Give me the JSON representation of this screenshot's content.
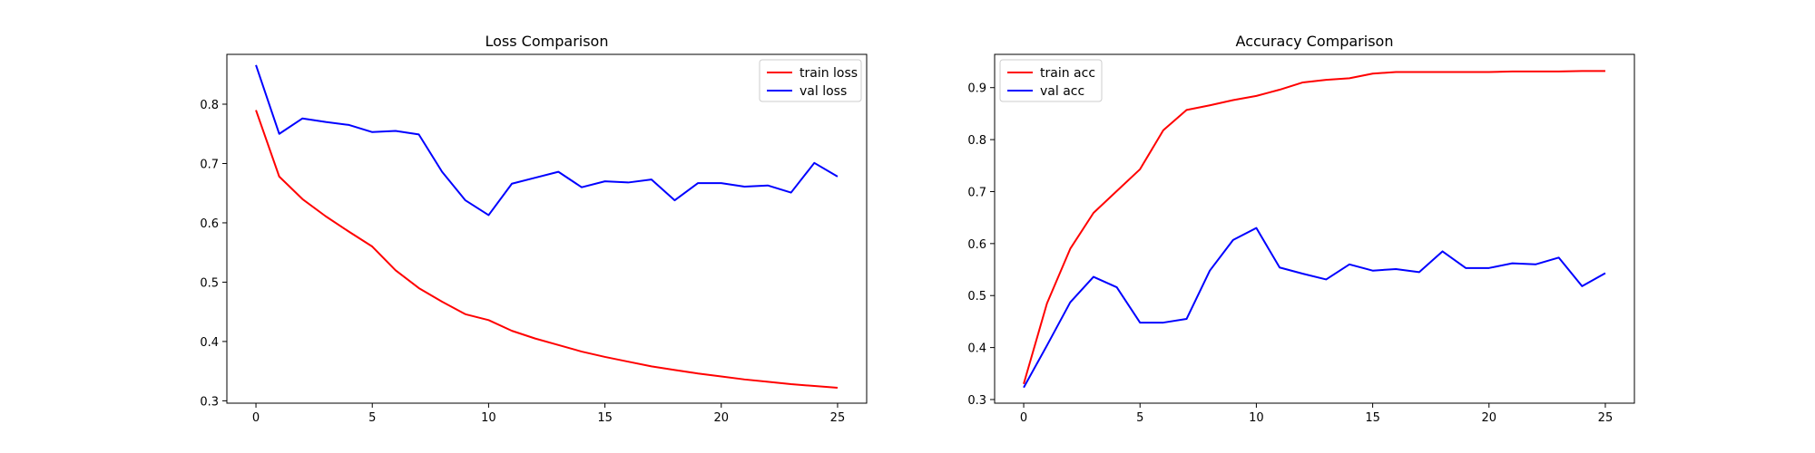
{
  "chart_data": [
    {
      "type": "line",
      "title": "Loss Comparison",
      "xlabel": "",
      "ylabel": "",
      "x": [
        0,
        1,
        2,
        3,
        4,
        5,
        6,
        7,
        8,
        9,
        10,
        11,
        12,
        13,
        14,
        15,
        16,
        17,
        18,
        19,
        20,
        21,
        22,
        23,
        24,
        25
      ],
      "xlim": [
        -1.25,
        26.25
      ],
      "ylim": [
        0.296,
        0.884
      ],
      "xticks": [
        0,
        5,
        10,
        15,
        20,
        25
      ],
      "yticks": [
        0.3,
        0.4,
        0.5,
        0.6,
        0.7,
        0.8
      ],
      "grid": false,
      "legend": "top-right",
      "series": [
        {
          "name": "train loss",
          "color": "#ff0000",
          "values": [
            0.79,
            0.678,
            0.64,
            0.611,
            0.585,
            0.56,
            0.52,
            0.49,
            0.467,
            0.446,
            0.436,
            0.418,
            0.405,
            0.394,
            0.383,
            0.374,
            0.366,
            0.358,
            0.352,
            0.346,
            0.341,
            0.336,
            0.332,
            0.328,
            0.325,
            0.322
          ]
        },
        {
          "name": "val loss",
          "color": "#0000ff",
          "values": [
            0.866,
            0.75,
            0.776,
            0.77,
            0.765,
            0.753,
            0.755,
            0.749,
            0.686,
            0.638,
            0.613,
            0.666,
            0.676,
            0.686,
            0.66,
            0.67,
            0.668,
            0.673,
            0.638,
            0.667,
            0.667,
            0.661,
            0.663,
            0.651,
            0.701,
            0.678
          ]
        }
      ]
    },
    {
      "type": "line",
      "title": "Accuracy Comparison",
      "xlabel": "",
      "ylabel": "",
      "x": [
        0,
        1,
        2,
        3,
        4,
        5,
        6,
        7,
        8,
        9,
        10,
        11,
        12,
        13,
        14,
        15,
        16,
        17,
        18,
        19,
        20,
        21,
        22,
        23,
        24,
        25
      ],
      "xlim": [
        -1.25,
        26.25
      ],
      "ylim": [
        0.293,
        0.964
      ],
      "xticks": [
        0,
        5,
        10,
        15,
        20,
        25
      ],
      "yticks": [
        0.3,
        0.4,
        0.5,
        0.6,
        0.7,
        0.8,
        0.9
      ],
      "grid": false,
      "legend": "top-left",
      "series": [
        {
          "name": "train acc",
          "color": "#ff0000",
          "values": [
            0.33,
            0.485,
            0.59,
            0.659,
            0.701,
            0.743,
            0.818,
            0.857,
            0.866,
            0.876,
            0.884,
            0.896,
            0.91,
            0.915,
            0.918,
            0.927,
            0.93,
            0.93,
            0.93,
            0.93,
            0.93,
            0.931,
            0.931,
            0.931,
            0.932,
            0.932
          ]
        },
        {
          "name": "val acc",
          "color": "#0000ff",
          "values": [
            0.323,
            0.404,
            0.487,
            0.536,
            0.516,
            0.448,
            0.448,
            0.455,
            0.548,
            0.607,
            0.63,
            0.554,
            0.542,
            0.531,
            0.56,
            0.548,
            0.551,
            0.545,
            0.585,
            0.553,
            0.553,
            0.562,
            0.56,
            0.573,
            0.518,
            0.543
          ]
        }
      ]
    }
  ]
}
